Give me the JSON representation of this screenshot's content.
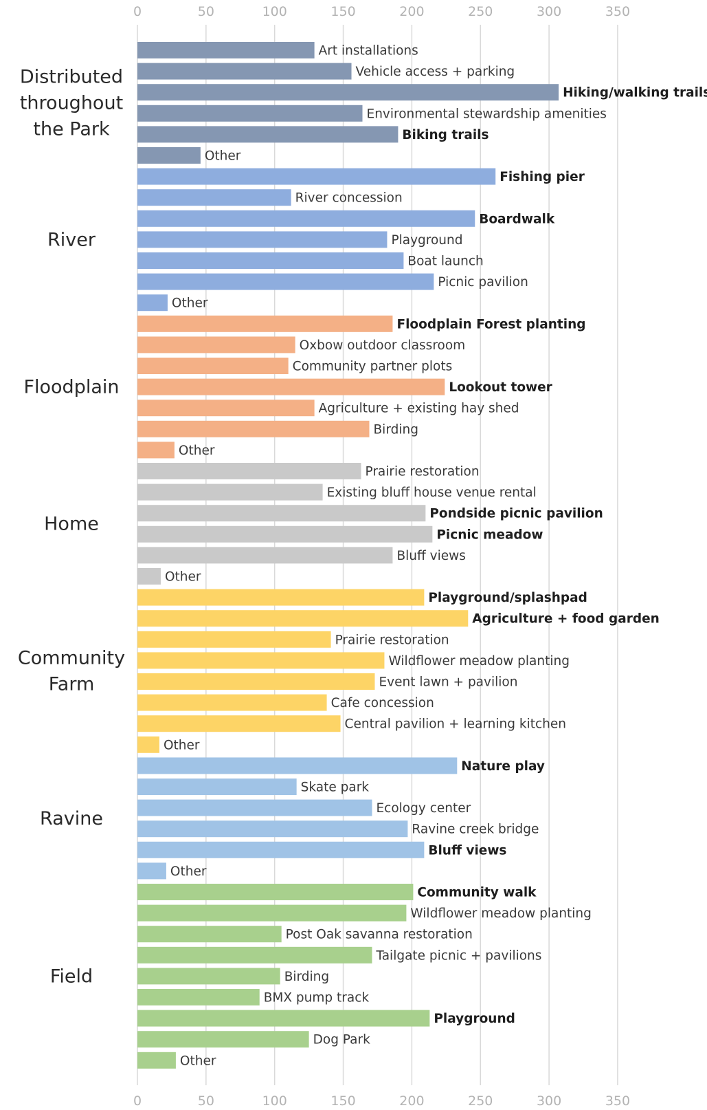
{
  "chart_data": {
    "type": "bar",
    "orientation": "horizontal",
    "xlim": [
      0,
      350
    ],
    "ticks": [
      0,
      50,
      100,
      150,
      200,
      250,
      300,
      350
    ],
    "grid": true,
    "groups": [
      {
        "name": "Distributed throughout the Park",
        "label_lines": [
          "Distributed",
          "throughout",
          "the Park"
        ],
        "color": "#8597b2",
        "bars": [
          {
            "label": "Art installations",
            "value": 129,
            "bold": false
          },
          {
            "label": "Vehicle access + parking",
            "value": 156,
            "bold": false
          },
          {
            "label": "Hiking/walking trails",
            "value": 307,
            "bold": true
          },
          {
            "label": "Environmental stewardship amenities",
            "value": 164,
            "bold": false
          },
          {
            "label": "Biking trails",
            "value": 190,
            "bold": true
          },
          {
            "label": "Other",
            "value": 46,
            "bold": false
          }
        ]
      },
      {
        "name": "River",
        "label_lines": [
          "River"
        ],
        "color": "#8eadde",
        "bars": [
          {
            "label": "Fishing pier",
            "value": 261,
            "bold": true
          },
          {
            "label": "River concession",
            "value": 112,
            "bold": false
          },
          {
            "label": "Boardwalk",
            "value": 246,
            "bold": true
          },
          {
            "label": "Playground",
            "value": 182,
            "bold": false
          },
          {
            "label": "Boat launch",
            "value": 194,
            "bold": false
          },
          {
            "label": "Picnic pavilion",
            "value": 216,
            "bold": false
          },
          {
            "label": "Other",
            "value": 22,
            "bold": false
          }
        ]
      },
      {
        "name": "Floodplain",
        "label_lines": [
          "Floodplain"
        ],
        "color": "#f4b086",
        "bars": [
          {
            "label": "Floodplain Forest planting",
            "value": 186,
            "bold": true
          },
          {
            "label": "Oxbow outdoor classroom",
            "value": 115,
            "bold": false
          },
          {
            "label": "Community partner plots",
            "value": 110,
            "bold": false
          },
          {
            "label": "Lookout tower",
            "value": 224,
            "bold": true
          },
          {
            "label": "Agriculture + existing hay shed",
            "value": 129,
            "bold": false
          },
          {
            "label": "Birding",
            "value": 169,
            "bold": false
          },
          {
            "label": "Other",
            "value": 27,
            "bold": false
          }
        ]
      },
      {
        "name": "Home",
        "label_lines": [
          "Home"
        ],
        "color": "#c9c9c9",
        "bars": [
          {
            "label": "Prairie restoration",
            "value": 163,
            "bold": false
          },
          {
            "label": "Existing bluff house venue rental",
            "value": 135,
            "bold": false
          },
          {
            "label": "Pondside picnic pavilion",
            "value": 210,
            "bold": true
          },
          {
            "label": "Picnic meadow",
            "value": 215,
            "bold": true
          },
          {
            "label": "Bluff views",
            "value": 186,
            "bold": false
          },
          {
            "label": "Other",
            "value": 17,
            "bold": false
          }
        ]
      },
      {
        "name": "Community Farm",
        "label_lines": [
          "Community",
          "Farm"
        ],
        "color": "#fdd466",
        "bars": [
          {
            "label": "Playground/splashpad",
            "value": 209,
            "bold": true
          },
          {
            "label": "Agriculture + food garden",
            "value": 241,
            "bold": true
          },
          {
            "label": "Prairie restoration",
            "value": 141,
            "bold": false
          },
          {
            "label": "Wildflower meadow planting",
            "value": 180,
            "bold": false
          },
          {
            "label": "Event lawn + pavilion",
            "value": 173,
            "bold": false
          },
          {
            "label": "Cafe concession",
            "value": 138,
            "bold": false
          },
          {
            "label": "Central pavilion + learning kitchen",
            "value": 148,
            "bold": false
          },
          {
            "label": "Other",
            "value": 16,
            "bold": false
          }
        ]
      },
      {
        "name": "Ravine",
        "label_lines": [
          "Ravine"
        ],
        "color": "#a0c3e6",
        "bars": [
          {
            "label": "Nature play",
            "value": 233,
            "bold": true
          },
          {
            "label": "Skate park",
            "value": 116,
            "bold": false
          },
          {
            "label": "Ecology center",
            "value": 171,
            "bold": false
          },
          {
            "label": "Ravine creek bridge",
            "value": 197,
            "bold": false
          },
          {
            "label": "Bluff views",
            "value": 209,
            "bold": true
          },
          {
            "label": "Other",
            "value": 21,
            "bold": false
          }
        ]
      },
      {
        "name": "Field",
        "label_lines": [
          "Field"
        ],
        "color": "#a8d08d",
        "bars": [
          {
            "label": "Community walk",
            "value": 201,
            "bold": true
          },
          {
            "label": "Wildflower meadow planting",
            "value": 196,
            "bold": false
          },
          {
            "label": "Post Oak savanna restoration",
            "value": 105,
            "bold": false
          },
          {
            "label": "Tailgate picnic + pavilions",
            "value": 171,
            "bold": false
          },
          {
            "label": "Birding",
            "value": 104,
            "bold": false
          },
          {
            "label": "BMX pump track",
            "value": 89,
            "bold": false
          },
          {
            "label": "Playground",
            "value": 213,
            "bold": true
          },
          {
            "label": "Dog Park",
            "value": 125,
            "bold": false
          },
          {
            "label": "Other",
            "value": 28,
            "bold": false
          }
        ]
      }
    ]
  }
}
